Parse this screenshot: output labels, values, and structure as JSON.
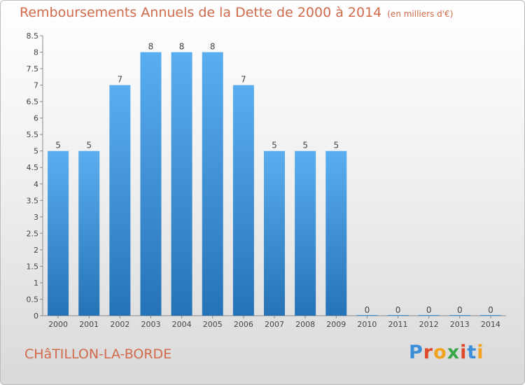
{
  "header": {
    "title": "Remboursements Annuels de la Dette de 2000 à 2014",
    "unit": "(en milliers d'€)"
  },
  "footer": {
    "commune": "CHâTILLON-LA-BORDE",
    "logo_letters": [
      "P",
      "r",
      "o",
      "x",
      "i",
      "t",
      "i"
    ],
    "logo_colors": [
      "#3a8fd8",
      "#e04a2a",
      "#f2a21c",
      "#3aa84a",
      "#e04a2a",
      "#3a8fd8",
      "#f2a21c"
    ]
  },
  "chart_data": {
    "type": "bar",
    "title": "Remboursements Annuels de la Dette de 2000 à 2014",
    "categories": [
      "2000",
      "2001",
      "2002",
      "2003",
      "2004",
      "2005",
      "2006",
      "2007",
      "2008",
      "2009",
      "2010",
      "2011",
      "2012",
      "2013",
      "2014"
    ],
    "values": [
      5,
      5,
      7,
      8,
      8,
      8,
      7,
      5,
      5,
      5,
      0,
      0,
      0,
      0,
      0
    ],
    "data_labels": [
      "5",
      "5",
      "7",
      "8",
      "8",
      "8",
      "7",
      "5",
      "5",
      "5",
      "0",
      "0",
      "0",
      "0",
      "0"
    ],
    "ylim": [
      0,
      8.5
    ],
    "yticks": [
      0,
      0.5,
      1,
      1.5,
      2,
      2.5,
      3,
      3.5,
      4,
      4.5,
      5,
      5.5,
      6,
      6.5,
      7,
      7.5,
      8,
      8.5
    ],
    "ytick_labels": [
      "0",
      "0.5",
      "1",
      "1.5",
      "2",
      "2.5",
      "3",
      "3.5",
      "4",
      "4.5",
      "5",
      "5.5",
      "6",
      "6.5",
      "7",
      "7.5",
      "8",
      "8.5"
    ],
    "grid": false,
    "bar_color": "#3d93d8",
    "bar_color_light": "#5aaef0",
    "bar_color_dark": "#2573b6",
    "text_color": "#d06a4a"
  }
}
